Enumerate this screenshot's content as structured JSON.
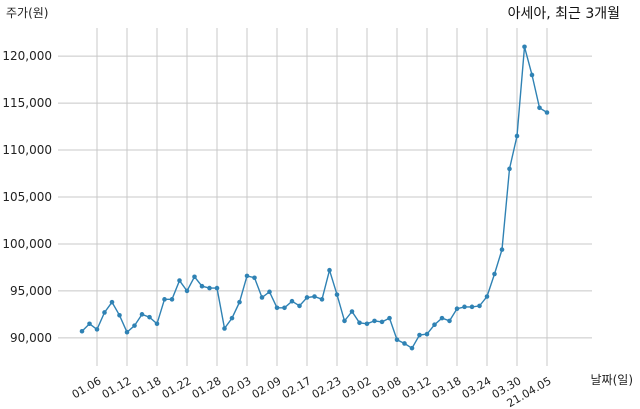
{
  "chart_data": {
    "type": "line",
    "title": "아세아, 최근 3개월",
    "ylabel": "주가(원)",
    "xlabel": "날짜(일)",
    "ylim": [
      87000,
      123000
    ],
    "y_ticks": [
      90000,
      95000,
      100000,
      105000,
      110000,
      115000,
      120000
    ],
    "y_tick_labels": [
      "90,000",
      "95,000",
      "100,000",
      "105,000",
      "110,000",
      "115,000",
      "120,000"
    ],
    "x_ticks": [
      {
        "label": "01.06",
        "index": 2
      },
      {
        "label": "01.12",
        "index": 6
      },
      {
        "label": "01.18",
        "index": 10
      },
      {
        "label": "01.22",
        "index": 14
      },
      {
        "label": "01.28",
        "index": 18
      },
      {
        "label": "02.03",
        "index": 22
      },
      {
        "label": "02.09",
        "index": 26
      },
      {
        "label": "02.17",
        "index": 30
      },
      {
        "label": "02.23",
        "index": 34
      },
      {
        "label": "03.02",
        "index": 38
      },
      {
        "label": "03.08",
        "index": 42
      },
      {
        "label": "03.12",
        "index": 46
      },
      {
        "label": "03.18",
        "index": 50
      },
      {
        "label": "03.24",
        "index": 54
      },
      {
        "label": "03.30",
        "index": 58
      },
      {
        "label": "21.04.05",
        "index": 62
      }
    ],
    "series": [
      {
        "color": "#2f82b4",
        "values": [
          90700,
          91500,
          90900,
          92700,
          93800,
          92400,
          90600,
          91300,
          92500,
          92200,
          91500,
          94100,
          94100,
          96100,
          95000,
          96500,
          95500,
          95300,
          95300,
          91000,
          92100,
          93800,
          96600,
          96400,
          94300,
          94900,
          93200,
          93200,
          93900,
          93400,
          94300,
          94400,
          94100,
          97200,
          94600,
          91800,
          92800,
          91600,
          91500,
          91800,
          91700,
          92100,
          89800,
          89400,
          88900,
          90300,
          90400,
          91400,
          92100,
          91800,
          93100,
          93300,
          93300,
          93400,
          94400,
          96800,
          99400,
          108000,
          111500,
          121000,
          118000,
          114500,
          114000
        ]
      }
    ]
  }
}
